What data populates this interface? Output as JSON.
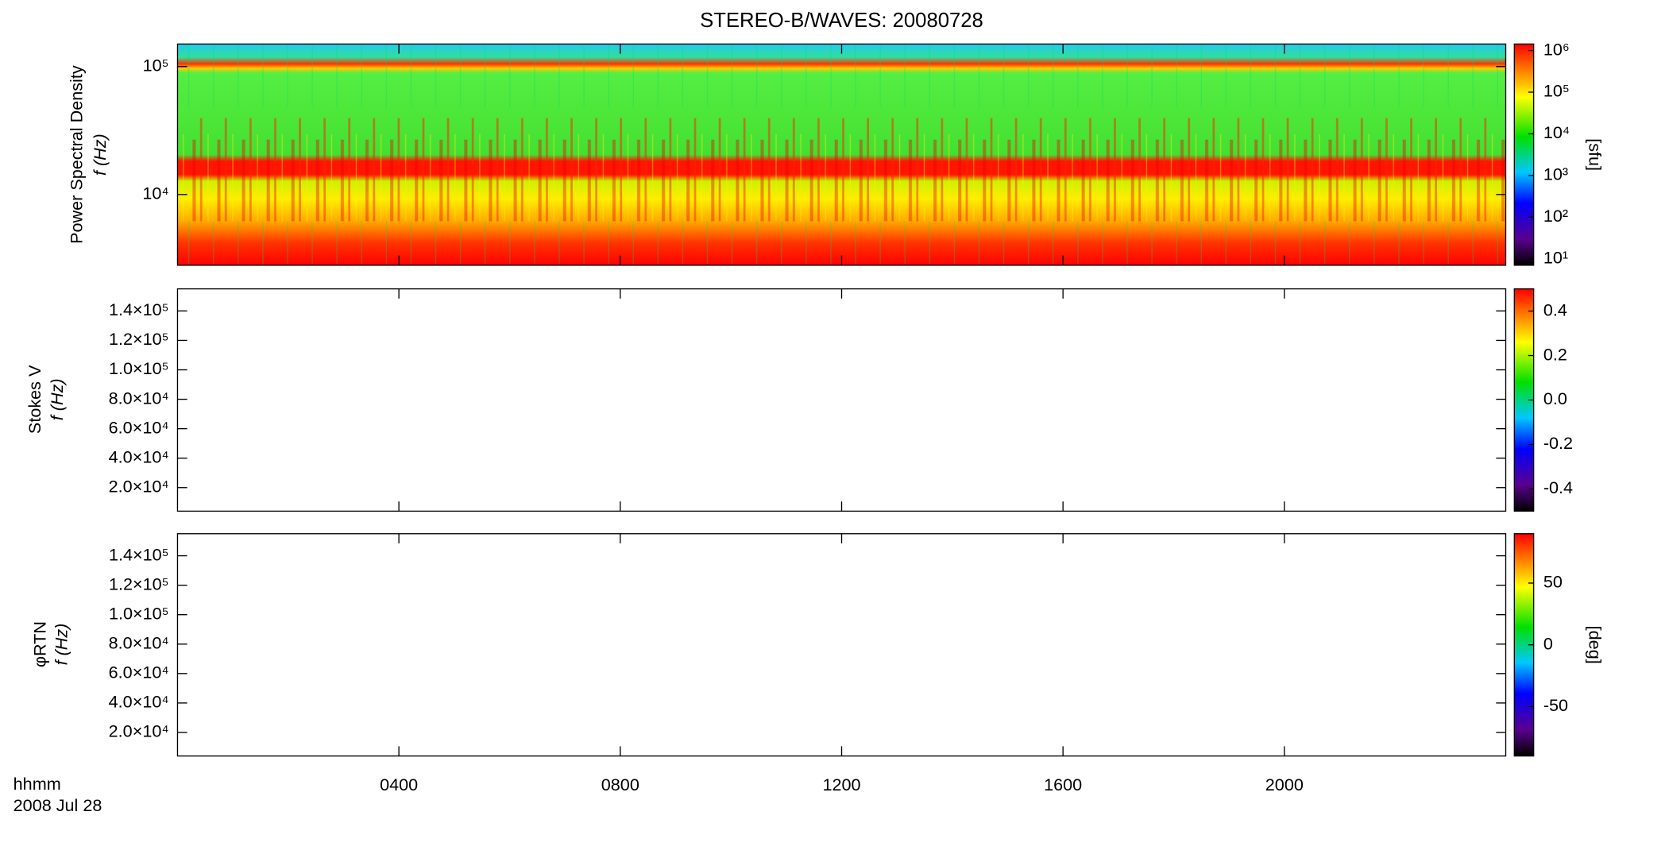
{
  "chart_data": [
    {
      "type": "spectrogram",
      "title": "STEREO-B/WAVES: 20080728",
      "ylabel": [
        "Power Spectral Density",
        "f (Hz)"
      ],
      "yscale": "log",
      "ylim": [
        2800,
        150000
      ],
      "yticks": [
        {
          "value": 10000,
          "label": "10⁴"
        },
        {
          "value": 100000,
          "label": "10⁵"
        }
      ],
      "colorbar": {
        "label": "[sfu]",
        "scale": "log",
        "lim": [
          7,
          1430000
        ],
        "ticks": [
          {
            "value": 10,
            "label": "10¹"
          },
          {
            "value": 100,
            "label": "10²"
          },
          {
            "value": 1000,
            "label": "10³"
          },
          {
            "value": 10000,
            "label": "10⁴"
          },
          {
            "value": 100000,
            "label": "10⁵"
          },
          {
            "value": 1000000,
            "label": "10⁶"
          }
        ]
      }
    },
    {
      "type": "spectrogram",
      "ylabel": [
        "Stokes V",
        "f (Hz)"
      ],
      "yscale": "linear",
      "ylim": [
        4000,
        155000
      ],
      "yticks": [
        {
          "value": 20000,
          "label": "2.0×10⁴"
        },
        {
          "value": 40000,
          "label": "4.0×10⁴"
        },
        {
          "value": 60000,
          "label": "6.0×10⁴"
        },
        {
          "value": 80000,
          "label": "8.0×10⁴"
        },
        {
          "value": 100000,
          "label": "1.0×10⁵"
        },
        {
          "value": 120000,
          "label": "1.2×10⁵"
        },
        {
          "value": 140000,
          "label": "1.4×10⁵"
        }
      ],
      "colorbar": {
        "scale": "linear",
        "lim": [
          -0.5,
          0.5
        ],
        "ticks": [
          -0.4,
          -0.2,
          {
            "value": 0,
            "label": "0.0"
          },
          0.2,
          0.4
        ]
      }
    },
    {
      "type": "spectrogram",
      "ylabel": [
        "φRTN",
        "f (Hz)"
      ],
      "yscale": "linear",
      "ylim": [
        4000,
        155000
      ],
      "yticks": [
        {
          "value": 20000,
          "label": "2.0×10⁴"
        },
        {
          "value": 40000,
          "label": "4.0×10⁴"
        },
        {
          "value": 60000,
          "label": "6.0×10⁴"
        },
        {
          "value": 80000,
          "label": "8.0×10⁴"
        },
        {
          "value": 100000,
          "label": "1.0×10⁵"
        },
        {
          "value": 120000,
          "label": "1.2×10⁵"
        },
        {
          "value": 140000,
          "label": "1.4×10⁵"
        }
      ],
      "colorbar": {
        "label": "[deg]",
        "scale": "linear",
        "lim": [
          -90,
          90
        ],
        "ticks": [
          -50,
          0,
          50
        ]
      },
      "xlim": [
        0,
        24
      ],
      "xticks": [
        {
          "value": 4,
          "label": "0400"
        },
        {
          "value": 8,
          "label": "0800"
        },
        {
          "value": 12,
          "label": "1200"
        },
        {
          "value": 16,
          "label": "1600"
        },
        {
          "value": 20,
          "label": "2000"
        }
      ],
      "xlabel": [
        "hhmm",
        "2008 Jul 28"
      ]
    }
  ]
}
